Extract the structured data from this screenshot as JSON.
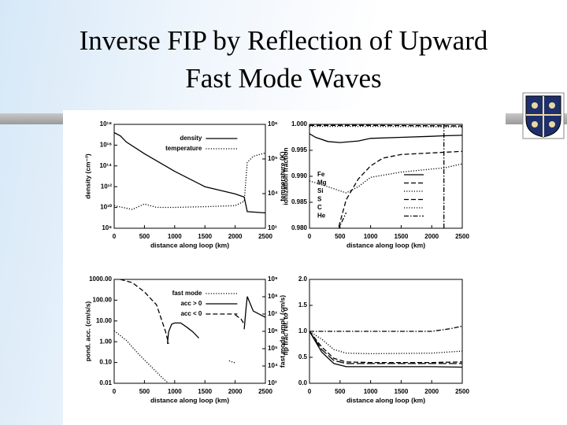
{
  "slide": {
    "title_lines": [
      "Inverse FIP by Reflection of Upward",
      "Fast Mode Waves"
    ]
  },
  "chart_data": [
    {
      "type": "line",
      "xlabel": "distance along loop (km)",
      "ylabel": "density (cm⁻³)",
      "y2label": "temperature (K)",
      "xlim": [
        0,
        2500
      ],
      "xticks": [
        0,
        500,
        1000,
        1500,
        2000,
        2500
      ],
      "ylim": [
        100000000.0,
        1e+18
      ],
      "ylog": true,
      "yticks": [
        {
          "value": 100000000.0,
          "label": "10⁸"
        },
        {
          "value": 10000000000.0,
          "label": "10¹⁰"
        },
        {
          "value": 1000000000000.0,
          "label": "10¹²"
        },
        {
          "value": 100000000000000.0,
          "label": "10¹⁴"
        },
        {
          "value": 1e+16,
          "label": "10¹⁶"
        },
        {
          "value": 1e+18,
          "label": "10¹⁸"
        }
      ],
      "y2lim": [
        1000,
        1000000
      ],
      "y2log": true,
      "y2ticks": [
        {
          "value": 1000,
          "label": "10³"
        },
        {
          "value": 10000,
          "label": "10⁴"
        },
        {
          "value": 100000,
          "label": "10⁵"
        },
        {
          "value": 1000000,
          "label": "10⁶"
        }
      ],
      "legend": "upper center",
      "series": [
        {
          "name": "density",
          "color": "#000000",
          "style": "solid",
          "x": [
            0,
            100,
            200,
            500,
            1000,
            1500,
            2000,
            2150,
            2200,
            2500
          ],
          "values": [
            1.6e+17,
            8e+16,
            2e+16,
            1500000000000000.0,
            30000000000000.0,
            1000000000000.0,
            200000000000.0,
            100000000000.0,
            4000000000.0,
            3000000000.0
          ]
        },
        {
          "name": "temperature",
          "color": "#000000",
          "style": "dotted",
          "axis": "y2",
          "x": [
            0,
            300,
            500,
            700,
            1000,
            1500,
            2000,
            2150,
            2200,
            2300,
            2500
          ],
          "values": [
            4500,
            3500,
            5000,
            4000,
            4000,
            4200,
            4500,
            6000,
            80000,
            120000,
            150000
          ]
        }
      ]
    },
    {
      "type": "line",
      "xlabel": "distance along loop (km)",
      "ylabel": "ionization fraction",
      "xlim": [
        0,
        2500
      ],
      "xticks": [
        0,
        500,
        1000,
        1500,
        2000,
        2500
      ],
      "ylim": [
        0.98,
        1.0
      ],
      "yticks": [
        {
          "value": 0.98,
          "label": "0.980"
        },
        {
          "value": 0.985,
          "label": "0.985"
        },
        {
          "value": 0.99,
          "label": "0.990"
        },
        0.995,
        {
          "value": 1.0,
          "label": "1.000"
        }
      ],
      "legend": "lower left",
      "series": [
        {
          "name": "Fe",
          "color": "#000000",
          "style": "solid",
          "x": [
            0,
            100,
            300,
            500,
            800,
            1000,
            1500,
            2000,
            2200,
            2500
          ],
          "values": [
            0.9982,
            0.9975,
            0.9967,
            0.9965,
            0.9968,
            0.9973,
            0.9975,
            0.9977,
            0.9978,
            0.9979
          ]
        },
        {
          "name": "Mg",
          "color": "#000000",
          "style": "dashed",
          "x": [
            0,
            1000,
            2500
          ],
          "values": [
            0.9998,
            0.9998,
            0.9997
          ]
        },
        {
          "name": "Si",
          "color": "#000000",
          "style": "dotted",
          "x": [
            0,
            300,
            600,
            800,
            1000,
            1500,
            2000,
            2200,
            2500
          ],
          "values": [
            0.9891,
            0.988,
            0.9868,
            0.988,
            0.9898,
            0.9908,
            0.9914,
            0.9916,
            0.9924
          ]
        },
        {
          "name": "S",
          "color": "#000000",
          "style": "dashed",
          "x": [
            450,
            600,
            800,
            1000,
            1200,
            1500,
            2000,
            2500
          ],
          "values": [
            0.979,
            0.9855,
            0.9895,
            0.992,
            0.9935,
            0.9942,
            0.9945,
            0.9948
          ]
        },
        {
          "name": "C",
          "color": "#000000",
          "style": "dotted",
          "x": [
            0,
            1000,
            2500
          ],
          "values": [
            0.9996,
            0.9996,
            0.9995
          ]
        },
        {
          "name": "He",
          "color": "#000000",
          "style": "dashdot",
          "x": [
            400,
            500,
            600,
            null,
            2200,
            2200
          ],
          "values": [
            0.978,
            0.9805,
            0.983,
            null,
            0.98,
            1.0
          ]
        }
      ]
    },
    {
      "type": "line",
      "xlabel": "distance along loop (km)",
      "ylabel": "pond. acc. (cm/s/s)",
      "y2label": "fast mode ampl. (cm/s)",
      "xlim": [
        0,
        2500
      ],
      "xticks": [
        0,
        500,
        1000,
        1500,
        2000,
        2500
      ],
      "ylim": [
        0.01,
        1000
      ],
      "ylog": true,
      "yticks": [
        0.01,
        {
          "value": 0.1,
          "label": "0.10"
        },
        {
          "value": 1,
          "label": "1.00"
        },
        {
          "value": 10,
          "label": "10.00"
        },
        {
          "value": 100,
          "label": "100.00"
        },
        {
          "value": 1000,
          "label": "1000.00"
        }
      ],
      "y2lim": [
        1000,
        1000000000
      ],
      "y2log": true,
      "y2ticks": [
        {
          "value": 1000,
          "label": "10³"
        },
        {
          "value": 10000,
          "label": "10⁴"
        },
        {
          "value": 100000,
          "label": "10⁵"
        },
        {
          "value": 1000000,
          "label": "10⁶"
        },
        {
          "value": 10000000,
          "label": "10⁷"
        },
        {
          "value": 100000000,
          "label": "10⁸"
        },
        {
          "value": 1000000000,
          "label": "10⁹"
        }
      ],
      "legend": "upper center",
      "series": [
        {
          "name": "fast mode",
          "color": "#000000",
          "style": "dotted",
          "axis": "y2",
          "x": [
            0,
            200,
            400,
            600,
            800,
            900,
            null,
            1900,
            2000
          ],
          "values": [
            1100000,
            300000,
            50000,
            10000,
            2000,
            1000,
            null,
            20000,
            15000
          ]
        },
        {
          "name": "acc > 0",
          "color": "#000000",
          "style": "solid",
          "x": [
            880,
            900,
            950,
            1000,
            1100,
            1200,
            1300,
            1400,
            null,
            2150,
            2180,
            2200,
            2300,
            2500
          ],
          "values": [
            0.8,
            3,
            7,
            8,
            8,
            5,
            3,
            1.5,
            null,
            4,
            40,
            150,
            30,
            15
          ]
        },
        {
          "name": "acc < 0",
          "color": "#000000",
          "style": "dashed",
          "x": [
            100,
            300,
            500,
            700,
            850,
            900,
            null,
            2000,
            2100,
            2150
          ],
          "values": [
            1000,
            700,
            250,
            60,
            3,
            0.8,
            null,
            20,
            12,
            7
          ]
        }
      ]
    },
    {
      "type": "line",
      "xlabel": "distance along loop (km)",
      "ylabel": "fip frac rel. to 0",
      "xlim": [
        0,
        2500
      ],
      "xticks": [
        0,
        500,
        1000,
        1500,
        2000,
        2500
      ],
      "ylim": [
        0,
        2
      ],
      "yticks": [
        {
          "value": 0,
          "label": "0.0"
        },
        0.5,
        {
          "value": 1,
          "label": "1.0"
        },
        1.5,
        {
          "value": 2,
          "label": "2.0"
        }
      ],
      "series": [
        {
          "color": "#000000",
          "style": "dashdot",
          "x": [
            0,
            200,
            500,
            1000,
            2000,
            2300,
            2500
          ],
          "values": [
            1.0,
            1.0,
            1.0,
            1.0,
            1.0,
            1.05,
            1.1
          ]
        },
        {
          "color": "#000000",
          "style": "dotted",
          "x": [
            0,
            200,
            400,
            600,
            1000,
            2000,
            2500
          ],
          "values": [
            1.0,
            0.85,
            0.65,
            0.58,
            0.57,
            0.58,
            0.62
          ]
        },
        {
          "color": "#000000",
          "style": "dashed",
          "x": [
            0,
            200,
            400,
            600,
            1000,
            2000,
            2500
          ],
          "values": [
            1.0,
            0.7,
            0.48,
            0.41,
            0.4,
            0.4,
            0.41
          ]
        },
        {
          "color": "#000000",
          "style": "longdash",
          "x": [
            0,
            200,
            400,
            600,
            1000,
            2000,
            2500
          ],
          "values": [
            1.0,
            0.65,
            0.44,
            0.38,
            0.38,
            0.38,
            0.38
          ]
        },
        {
          "color": "#000000",
          "style": "solid",
          "x": [
            0,
            200,
            400,
            600,
            1000,
            2000,
            2500
          ],
          "values": [
            1.0,
            0.6,
            0.38,
            0.32,
            0.32,
            0.32,
            0.31
          ]
        }
      ]
    }
  ]
}
